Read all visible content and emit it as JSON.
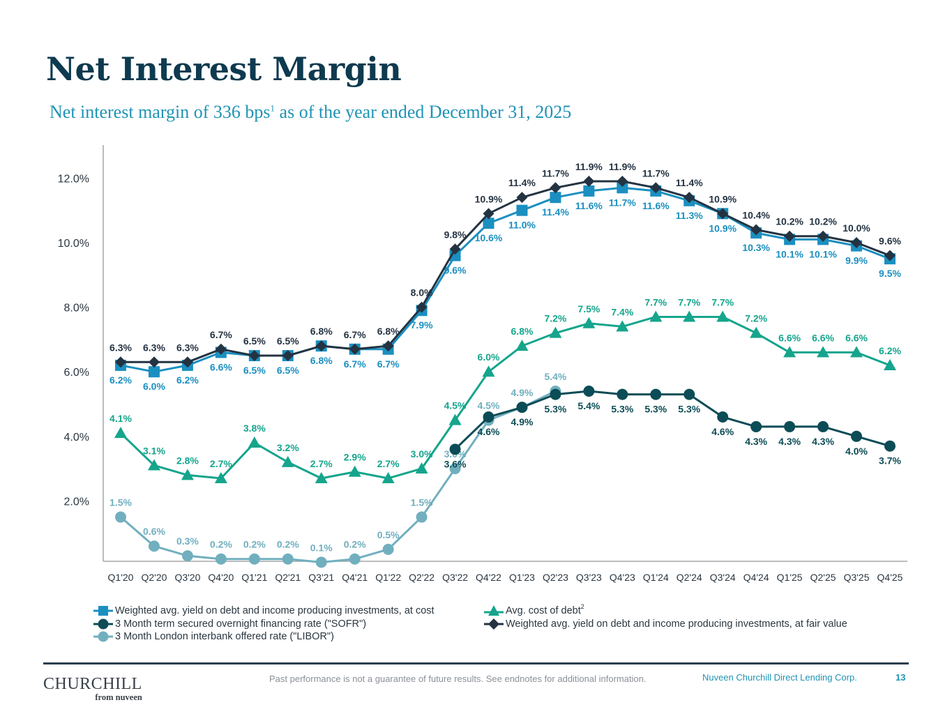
{
  "header": {
    "title": "Net Interest Margin",
    "subtitle_pre": "Net interest margin of 336 bps",
    "subtitle_sup": "1",
    "subtitle_post": " as of the year ended December 31, 2025"
  },
  "chart_data": {
    "type": "line",
    "title": "",
    "xlabel": "",
    "ylabel": "",
    "ylim": [
      0,
      13
    ],
    "yticks": [
      2,
      4,
      6,
      8,
      10,
      12
    ],
    "ytick_labels": [
      "2.0%",
      "4.0%",
      "6.0%",
      "8.0%",
      "10.0%",
      "12.0%"
    ],
    "grid": false,
    "legend_position": "bottom",
    "categories": [
      "Q1'20",
      "Q2'20",
      "Q3'20",
      "Q4'20",
      "Q1'21",
      "Q2'21",
      "Q3'21",
      "Q4'21",
      "Q1'22",
      "Q2'22",
      "Q3'22",
      "Q4'22",
      "Q1'23",
      "Q2'23",
      "Q3'23",
      "Q4'23",
      "Q1'24",
      "Q2'24",
      "Q3'24",
      "Q4'24",
      "Q1'25",
      "Q2'25",
      "Q3'25",
      "Q4'25"
    ],
    "series": [
      {
        "name": "Weighted avg. yield on debt and income producing investments, at cost",
        "marker": "square",
        "color": "#1b8fc0",
        "label_position": "below",
        "values": [
          6.2,
          6.0,
          6.2,
          6.6,
          6.5,
          6.5,
          6.8,
          6.7,
          6.7,
          7.9,
          9.6,
          10.6,
          11.0,
          11.4,
          11.6,
          11.7,
          11.6,
          11.3,
          10.9,
          10.3,
          10.1,
          10.1,
          9.9,
          9.5
        ]
      },
      {
        "name": "Weighted avg. yield on debt and income producing investments, at fair value",
        "marker": "diamond",
        "color": "#243342",
        "label_position": "above",
        "values": [
          6.3,
          6.3,
          6.3,
          6.7,
          6.5,
          6.5,
          6.8,
          6.7,
          6.8,
          8.0,
          9.8,
          10.9,
          11.4,
          11.7,
          11.9,
          11.9,
          11.7,
          11.4,
          10.9,
          10.4,
          10.2,
          10.2,
          10.0,
          9.6
        ]
      },
      {
        "name": "Avg. cost of debt",
        "name_sup": "2",
        "marker": "triangle",
        "color": "#15a58c",
        "label_position": "above",
        "values": [
          4.1,
          3.1,
          2.8,
          2.7,
          3.8,
          3.2,
          2.7,
          2.9,
          2.7,
          3.0,
          4.5,
          6.0,
          6.8,
          7.2,
          7.5,
          7.4,
          7.7,
          7.7,
          7.7,
          7.2,
          6.6,
          6.6,
          6.6,
          6.2
        ]
      },
      {
        "name": "3 Month term secured overnight financing rate (\"SOFR\")",
        "marker": "circle",
        "color": "#0c4c56",
        "label_position": "below",
        "values": [
          null,
          null,
          null,
          null,
          null,
          null,
          null,
          null,
          null,
          null,
          3.6,
          4.6,
          4.9,
          5.3,
          5.4,
          5.3,
          5.3,
          5.3,
          4.6,
          4.3,
          4.3,
          4.3,
          4.0,
          3.7
        ]
      },
      {
        "name": "3 Month London interbank offered rate (\"LIBOR\")",
        "marker": "circle",
        "color": "#71afbf",
        "label_position": "above",
        "values": [
          1.5,
          0.6,
          0.3,
          0.2,
          0.2,
          0.2,
          0.1,
          0.2,
          0.5,
          1.5,
          3.0,
          4.5,
          4.9,
          5.4,
          null,
          null,
          null,
          null,
          null,
          null,
          null,
          null,
          null,
          null
        ]
      }
    ]
  },
  "legend": {
    "left": [
      {
        "label": "Weighted avg. yield on debt and income producing investments, at cost",
        "marker": "square",
        "color": "#1b8fc0"
      },
      {
        "label": "3 Month term secured overnight financing rate (\"SOFR\")",
        "marker": "circle",
        "color": "#0c4c56"
      },
      {
        "label": "3 Month London interbank offered rate (\"LIBOR\")",
        "marker": "circle",
        "color": "#71afbf"
      }
    ],
    "right": [
      {
        "label": "Avg. cost of debt",
        "sup": "2",
        "marker": "triangle",
        "color": "#15a58c"
      },
      {
        "label": "Weighted avg. yield on debt and income producing investments, at fair value",
        "marker": "diamond",
        "color": "#243342"
      }
    ]
  },
  "footer": {
    "logo_main": "CHURCHILL",
    "logo_sub": "from nuveen",
    "disclaimer": "Past performance is not a guarantee of future results. See endnotes for additional information.",
    "company": "Nuveen Churchill Direct Lending Corp.",
    "page_number": "13"
  }
}
